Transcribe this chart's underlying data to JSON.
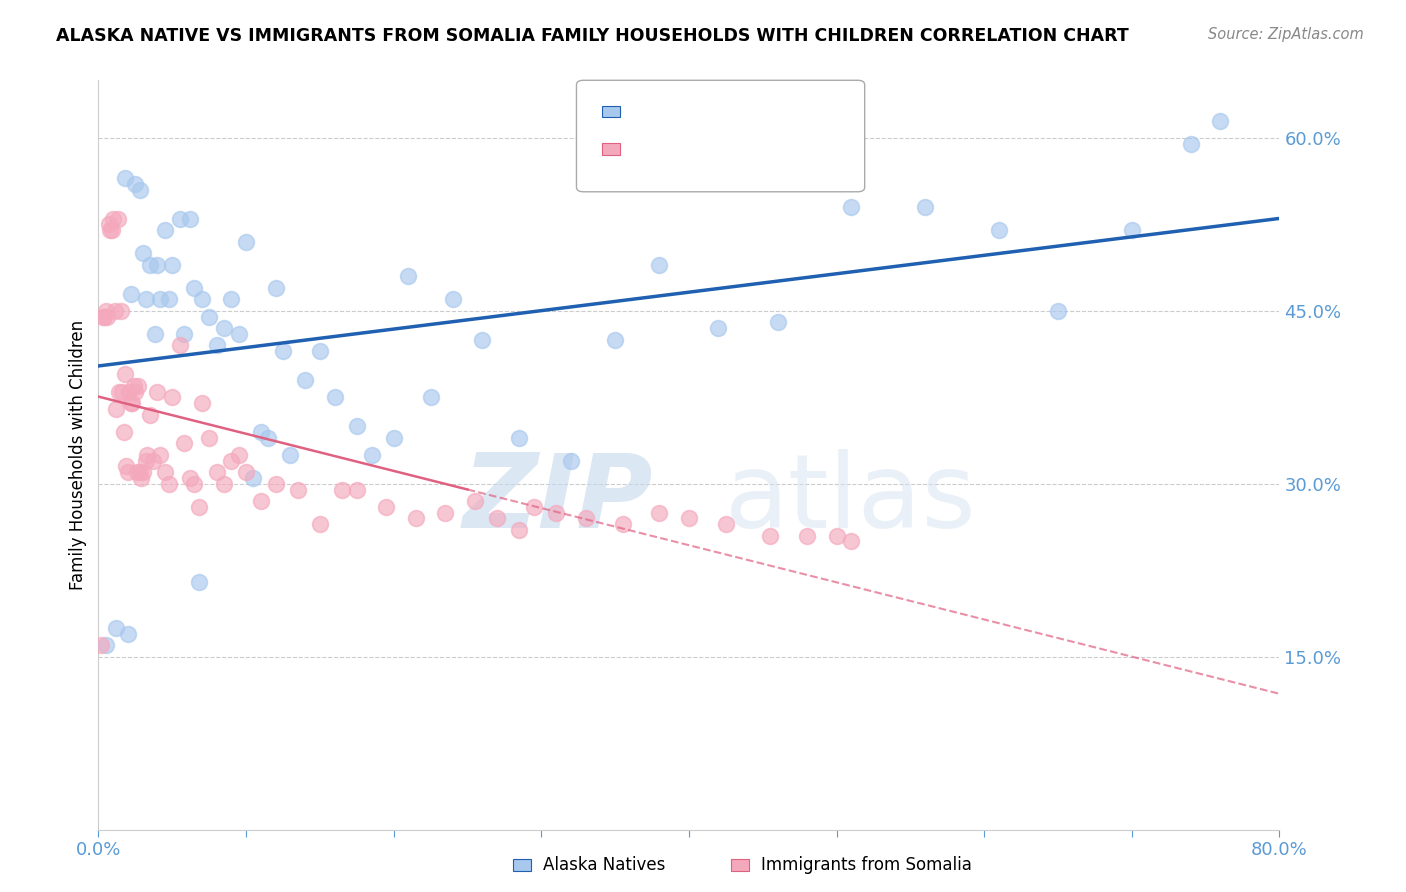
{
  "title": "ALASKA NATIVE VS IMMIGRANTS FROM SOMALIA FAMILY HOUSEHOLDS WITH CHILDREN CORRELATION CHART",
  "source": "Source: ZipAtlas.com",
  "ylabel": "Family Households with Children",
  "xlim": [
    0.0,
    0.8
  ],
  "ylim": [
    0.0,
    0.65
  ],
  "xtick_positions": [
    0.0,
    0.1,
    0.2,
    0.3,
    0.4,
    0.5,
    0.6,
    0.7,
    0.8
  ],
  "xticklabels": [
    "0.0%",
    "",
    "",
    "",
    "",
    "",
    "",
    "",
    "80.0%"
  ],
  "yticks_right": [
    0.15,
    0.3,
    0.45,
    0.6
  ],
  "ytick_labels_right": [
    "15.0%",
    "30.0%",
    "45.0%",
    "60.0%"
  ],
  "blue_color": "#A8C8EE",
  "pink_color": "#F4A8BC",
  "blue_line_color": "#2060B0",
  "pink_line_color": "#E06080",
  "axis_color": "#5B9BD5",
  "grid_color": "#CCCCCC",
  "alaska_x": [
    0.005,
    0.012,
    0.018,
    0.02,
    0.022,
    0.025,
    0.028,
    0.03,
    0.032,
    0.035,
    0.038,
    0.04,
    0.042,
    0.045,
    0.048,
    0.05,
    0.055,
    0.058,
    0.062,
    0.065,
    0.068,
    0.07,
    0.075,
    0.08,
    0.085,
    0.09,
    0.095,
    0.1,
    0.105,
    0.11,
    0.115,
    0.12,
    0.125,
    0.13,
    0.14,
    0.15,
    0.16,
    0.175,
    0.185,
    0.2,
    0.21,
    0.225,
    0.24,
    0.26,
    0.285,
    0.32,
    0.35,
    0.38,
    0.42,
    0.46,
    0.51,
    0.56,
    0.61,
    0.65,
    0.7,
    0.74,
    0.76
  ],
  "alaska_y": [
    0.16,
    0.175,
    0.565,
    0.17,
    0.465,
    0.56,
    0.555,
    0.5,
    0.46,
    0.49,
    0.43,
    0.49,
    0.46,
    0.52,
    0.46,
    0.49,
    0.53,
    0.43,
    0.53,
    0.47,
    0.215,
    0.46,
    0.445,
    0.42,
    0.435,
    0.46,
    0.43,
    0.51,
    0.305,
    0.345,
    0.34,
    0.47,
    0.415,
    0.325,
    0.39,
    0.415,
    0.375,
    0.35,
    0.325,
    0.34,
    0.48,
    0.375,
    0.46,
    0.425,
    0.34,
    0.32,
    0.425,
    0.49,
    0.435,
    0.44,
    0.54,
    0.54,
    0.52,
    0.45,
    0.52,
    0.595,
    0.615
  ],
  "somalia_x": [
    0.002,
    0.003,
    0.004,
    0.005,
    0.006,
    0.007,
    0.008,
    0.009,
    0.01,
    0.011,
    0.012,
    0.013,
    0.014,
    0.015,
    0.016,
    0.017,
    0.018,
    0.019,
    0.02,
    0.021,
    0.022,
    0.023,
    0.024,
    0.025,
    0.026,
    0.027,
    0.028,
    0.029,
    0.03,
    0.032,
    0.033,
    0.035,
    0.037,
    0.04,
    0.042,
    0.045,
    0.048,
    0.05,
    0.055,
    0.058,
    0.062,
    0.065,
    0.068,
    0.07,
    0.075,
    0.08,
    0.085,
    0.09,
    0.095,
    0.1,
    0.11,
    0.12,
    0.135,
    0.15,
    0.165,
    0.175,
    0.195,
    0.215,
    0.235,
    0.255,
    0.27,
    0.285,
    0.295,
    0.31,
    0.33,
    0.355,
    0.38,
    0.4,
    0.425,
    0.455,
    0.48,
    0.5,
    0.51
  ],
  "somalia_y": [
    0.16,
    0.445,
    0.445,
    0.45,
    0.445,
    0.525,
    0.52,
    0.52,
    0.53,
    0.45,
    0.365,
    0.53,
    0.38,
    0.45,
    0.38,
    0.345,
    0.395,
    0.315,
    0.31,
    0.38,
    0.37,
    0.37,
    0.385,
    0.38,
    0.31,
    0.385,
    0.31,
    0.305,
    0.31,
    0.32,
    0.325,
    0.36,
    0.32,
    0.38,
    0.325,
    0.31,
    0.3,
    0.375,
    0.42,
    0.335,
    0.305,
    0.3,
    0.28,
    0.37,
    0.34,
    0.31,
    0.3,
    0.32,
    0.325,
    0.31,
    0.285,
    0.3,
    0.295,
    0.265,
    0.295,
    0.295,
    0.28,
    0.27,
    0.275,
    0.285,
    0.27,
    0.26,
    0.28,
    0.275,
    0.27,
    0.265,
    0.275,
    0.27,
    0.265,
    0.255,
    0.255,
    0.255,
    0.25
  ]
}
